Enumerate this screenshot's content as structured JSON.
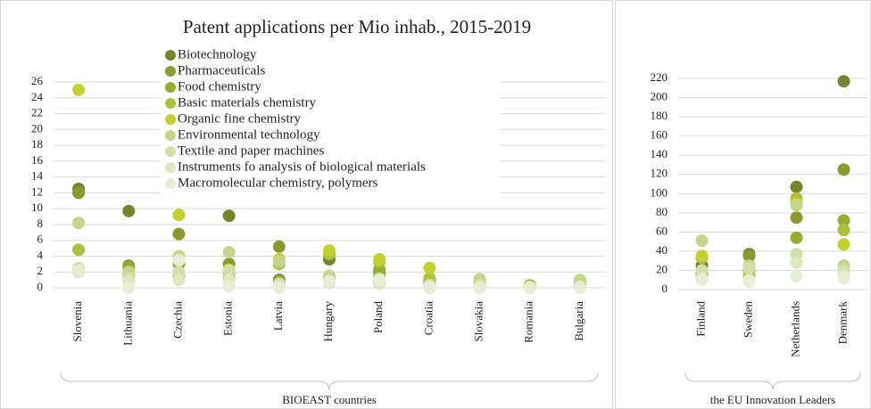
{
  "chart_data": [
    {
      "type": "scatter",
      "title": "Patent applications per Mio inhab., 2015-2019",
      "group_label": "BIOEAST countries",
      "categories": [
        "Slovenia",
        "Lithuania",
        "Czechia",
        "Estonia",
        "Latvia",
        "Hungary",
        "Poland",
        "Croatia",
        "Slovakia",
        "Romania",
        "Bulgaria"
      ],
      "ylim": [
        0,
        26
      ],
      "yticks": [
        0,
        2,
        4,
        6,
        8,
        10,
        12,
        14,
        16,
        18,
        20,
        22,
        24,
        26
      ],
      "grid": true,
      "legend": "top",
      "series": [
        {
          "name": "Biotechnology",
          "color": "#76852b",
          "values": [
            12.5,
            9.7,
            3.5,
            9.1,
            1.0,
            3.6,
            2.0,
            1.0,
            0.3,
            0.2,
            0.3
          ]
        },
        {
          "name": "Pharmaceuticals",
          "color": "#8a9a2e",
          "values": [
            12.0,
            2.8,
            6.8,
            3.0,
            5.2,
            4.2,
            1.5,
            0.5,
            0.5,
            0.3,
            0.5
          ]
        },
        {
          "name": "Food chemistry",
          "color": "#9aab30",
          "values": [
            2.3,
            2.5,
            3.0,
            2.0,
            0.8,
            1.2,
            2.3,
            0.8,
            0.2,
            0.1,
            0.2
          ]
        },
        {
          "name": "Basic materials chemistry",
          "color": "#adc13a",
          "values": [
            4.8,
            1.5,
            1.5,
            1.2,
            3.0,
            4.3,
            3.3,
            1.2,
            1.0,
            0.1,
            0.8
          ]
        },
        {
          "name": "Organic fine chemistry",
          "color": "#c3d12f",
          "values": [
            25,
            1.0,
            9.2,
            2.3,
            3.6,
            4.7,
            3.6,
            2.5,
            0.4,
            0.2,
            0.4
          ]
        },
        {
          "name": "Environmental technology",
          "color": "#c4d68a",
          "values": [
            8.2,
            2.0,
            4.0,
            4.5,
            3.3,
            1.5,
            1.2,
            0.4,
            1.1,
            0.1,
            1.0
          ]
        },
        {
          "name": "Textile and paper machines",
          "color": "#d3dfa8",
          "values": [
            2.5,
            1.2,
            2.0,
            2.2,
            0.5,
            1.0,
            0.8,
            0.3,
            0.3,
            0.1,
            0.2
          ]
        },
        {
          "name": "Instruments fo analysis of biological materials",
          "color": "#dfe7c0",
          "values": [
            2.0,
            0.8,
            1.0,
            1.0,
            0.2,
            0.6,
            0.5,
            0,
            0.1,
            0,
            0.1
          ]
        },
        {
          "name": "Macromolecular chemistry, polymers",
          "color": "#e8eed5",
          "values": [
            2.2,
            0,
            3.5,
            0.2,
            0,
            0.8,
            1.0,
            0.1,
            0,
            0,
            0
          ]
        }
      ]
    },
    {
      "type": "scatter",
      "group_label": "the EU Innovation Leaders",
      "categories": [
        "Finland",
        "Sweden",
        "Netherlands",
        "Denmark"
      ],
      "ylim": [
        0,
        220
      ],
      "yticks": [
        0,
        20,
        40,
        60,
        80,
        100,
        120,
        140,
        160,
        180,
        200,
        220
      ],
      "grid": true,
      "series": [
        {
          "color": "#76852b",
          "values": [
            25,
            37,
            107,
            217
          ]
        },
        {
          "color": "#8a9a2e",
          "values": [
            17,
            35,
            75,
            125
          ]
        },
        {
          "color": "#9aab30",
          "values": [
            14,
            20,
            54,
            72
          ]
        },
        {
          "color": "#adc13a",
          "values": [
            33,
            15,
            95,
            62
          ]
        },
        {
          "color": "#c3d12f",
          "values": [
            35,
            12,
            90,
            47
          ]
        },
        {
          "color": "#c4d68a",
          "values": [
            51,
            25,
            88,
            25
          ]
        },
        {
          "color": "#d3dfa8",
          "values": [
            20,
            22,
            37,
            20
          ]
        },
        {
          "color": "#dfe7c0",
          "values": [
            12,
            10,
            28,
            15
          ]
        },
        {
          "color": "#e8eed5",
          "values": [
            10,
            8,
            14,
            12
          ]
        }
      ]
    }
  ]
}
